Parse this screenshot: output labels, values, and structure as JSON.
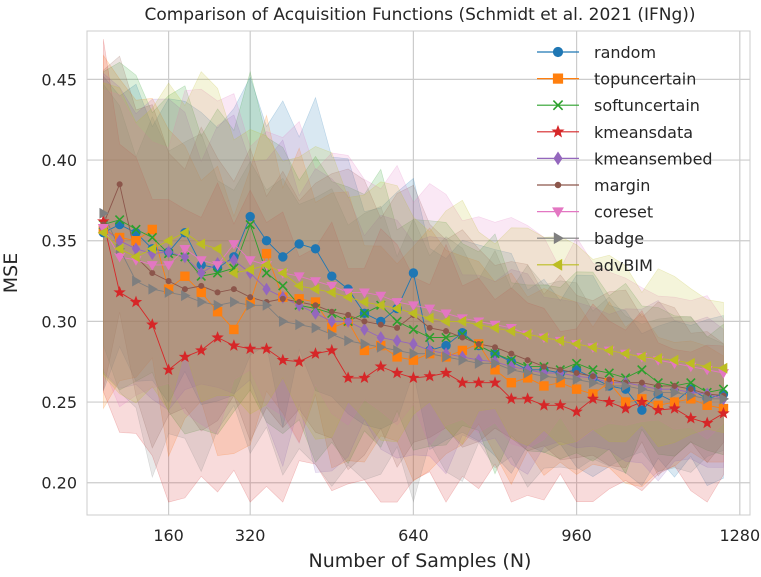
{
  "chart_data": {
    "type": "line",
    "title": "Comparison of Acquisition Functions (Schmidt et al. 2021 (IFNg))",
    "xlabel": "Number of Samples (N)",
    "ylabel": "MSE",
    "xlim": [
      0,
      1300
    ],
    "ylim": [
      0.18,
      0.48
    ],
    "xticks": [
      160,
      320,
      640,
      960,
      1280
    ],
    "yticks": [
      0.2,
      0.25,
      0.3,
      0.35,
      0.4,
      0.45
    ],
    "xtick_labels": [
      "160",
      "320",
      "640",
      "960",
      "1280"
    ],
    "ytick_labels": [
      "0.20",
      "0.25",
      "0.30",
      "0.35",
      "0.40",
      "0.45"
    ],
    "grid": true,
    "legend_position": "top-right",
    "x": [
      32,
      64,
      96,
      128,
      160,
      192,
      224,
      256,
      288,
      320,
      352,
      384,
      416,
      448,
      480,
      512,
      544,
      576,
      608,
      640,
      672,
      704,
      736,
      768,
      800,
      832,
      864,
      896,
      928,
      960,
      992,
      1024,
      1056,
      1088,
      1120,
      1152,
      1184,
      1216,
      1248
    ],
    "series": [
      {
        "name": "random",
        "color": "#1f77b4",
        "marker": "circle",
        "values": [
          0.355,
          0.36,
          0.355,
          0.345,
          0.343,
          0.355,
          0.335,
          0.333,
          0.34,
          0.365,
          0.35,
          0.34,
          0.348,
          0.345,
          0.328,
          0.32,
          0.305,
          0.3,
          0.308,
          0.33,
          0.282,
          0.285,
          0.293,
          0.285,
          0.28,
          0.275,
          0.27,
          0.27,
          0.268,
          0.27,
          0.265,
          0.26,
          0.258,
          0.245,
          0.255,
          0.25,
          0.258,
          0.252,
          0.255
        ]
      },
      {
        "name": "topuncertain",
        "color": "#ff7f0e",
        "marker": "square",
        "values": [
          0.357,
          0.352,
          0.35,
          0.357,
          0.32,
          0.328,
          0.318,
          0.306,
          0.295,
          0.312,
          0.342,
          0.315,
          0.314,
          0.312,
          0.296,
          0.3,
          0.282,
          0.285,
          0.278,
          0.276,
          0.28,
          0.278,
          0.282,
          0.286,
          0.27,
          0.262,
          0.265,
          0.26,
          0.262,
          0.258,
          0.255,
          0.262,
          0.25,
          0.252,
          0.248,
          0.25,
          0.252,
          0.248,
          0.246
        ]
      },
      {
        "name": "softuncertain",
        "color": "#2ca02c",
        "marker": "x",
        "values": [
          0.36,
          0.363,
          0.357,
          0.352,
          0.342,
          0.34,
          0.328,
          0.33,
          0.333,
          0.36,
          0.33,
          0.322,
          0.31,
          0.308,
          0.305,
          0.3,
          0.305,
          0.31,
          0.3,
          0.295,
          0.29,
          0.29,
          0.292,
          0.285,
          0.28,
          0.276,
          0.272,
          0.272,
          0.27,
          0.274,
          0.27,
          0.268,
          0.265,
          0.27,
          0.262,
          0.26,
          0.262,
          0.256,
          0.258
        ]
      },
      {
        "name": "kmeansdata",
        "color": "#d62728",
        "marker": "star",
        "values": [
          0.362,
          0.318,
          0.312,
          0.298,
          0.27,
          0.278,
          0.282,
          0.29,
          0.285,
          0.283,
          0.283,
          0.276,
          0.275,
          0.28,
          0.282,
          0.265,
          0.265,
          0.272,
          0.268,
          0.265,
          0.266,
          0.268,
          0.262,
          0.262,
          0.262,
          0.252,
          0.252,
          0.248,
          0.248,
          0.244,
          0.252,
          0.25,
          0.246,
          0.25,
          0.245,
          0.246,
          0.24,
          0.237,
          0.243
        ]
      },
      {
        "name": "kmeansembed",
        "color": "#9467bd",
        "marker": "diamond",
        "values": [
          0.358,
          0.35,
          0.345,
          0.342,
          0.343,
          0.34,
          0.33,
          0.336,
          0.338,
          0.33,
          0.32,
          0.315,
          0.31,
          0.305,
          0.3,
          0.3,
          0.295,
          0.29,
          0.288,
          0.286,
          0.282,
          0.28,
          0.278,
          0.276,
          0.275,
          0.272,
          0.27,
          0.268,
          0.268,
          0.266,
          0.265,
          0.262,
          0.262,
          0.26,
          0.258,
          0.258,
          0.256,
          0.255,
          0.252
        ]
      },
      {
        "name": "margin",
        "color": "#8c564b",
        "marker": "point",
        "values": [
          0.36,
          0.385,
          0.34,
          0.33,
          0.325,
          0.32,
          0.322,
          0.318,
          0.32,
          0.315,
          0.312,
          0.314,
          0.312,
          0.31,
          0.306,
          0.304,
          0.3,
          0.298,
          0.296,
          0.304,
          0.296,
          0.294,
          0.29,
          0.286,
          0.284,
          0.28,
          0.276,
          0.272,
          0.27,
          0.268,
          0.266,
          0.264,
          0.262,
          0.262,
          0.26,
          0.26,
          0.258,
          0.255,
          0.254
        ]
      },
      {
        "name": "coreset",
        "color": "#e377c2",
        "marker": "triangle-down",
        "values": [
          0.358,
          0.34,
          0.338,
          0.335,
          0.335,
          0.345,
          0.338,
          0.335,
          0.348,
          0.338,
          0.335,
          0.33,
          0.328,
          0.325,
          0.322,
          0.318,
          0.318,
          0.316,
          0.312,
          0.31,
          0.308,
          0.305,
          0.302,
          0.3,
          0.298,
          0.296,
          0.292,
          0.29,
          0.288,
          0.286,
          0.284,
          0.282,
          0.28,
          0.278,
          0.276,
          0.274,
          0.272,
          0.27,
          0.268
        ]
      },
      {
        "name": "badge",
        "color": "#7f7f7f",
        "marker": "triangle-right",
        "values": [
          0.367,
          0.345,
          0.325,
          0.32,
          0.318,
          0.316,
          0.312,
          0.31,
          0.312,
          0.31,
          0.31,
          0.3,
          0.298,
          0.296,
          0.292,
          0.288,
          0.286,
          0.284,
          0.282,
          0.28,
          0.28,
          0.278,
          0.276,
          0.274,
          0.274,
          0.27,
          0.268,
          0.266,
          0.265,
          0.264,
          0.262,
          0.26,
          0.26,
          0.258,
          0.256,
          0.256,
          0.254,
          0.252,
          0.252
        ]
      },
      {
        "name": "advBIM",
        "color": "#bcbd22",
        "marker": "triangle-left",
        "values": [
          0.355,
          0.345,
          0.34,
          0.345,
          0.35,
          0.355,
          0.348,
          0.345,
          0.33,
          0.332,
          0.335,
          0.33,
          0.322,
          0.32,
          0.318,
          0.315,
          0.312,
          0.31,
          0.308,
          0.305,
          0.302,
          0.3,
          0.3,
          0.298,
          0.296,
          0.294,
          0.292,
          0.29,
          0.288,
          0.286,
          0.284,
          0.282,
          0.28,
          0.278,
          0.277,
          0.276,
          0.274,
          0.272,
          0.271
        ]
      }
    ]
  }
}
